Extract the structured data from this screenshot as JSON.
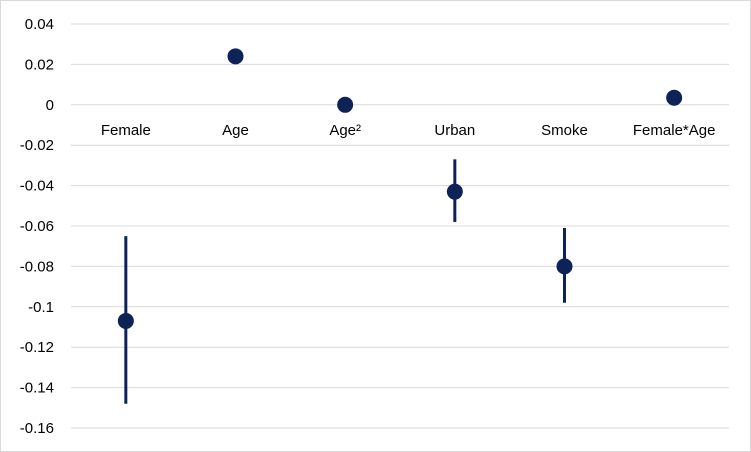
{
  "chart_data": {
    "type": "scatter",
    "subtype": "point-with-error-bars",
    "title": "",
    "xlabel": "",
    "ylabel": "",
    "ylim": [
      -0.16,
      0.04
    ],
    "ytick_step": 0.02,
    "yticks": [
      "0.04",
      "0.02",
      "0",
      "-0.02",
      "-0.04",
      "-0.06",
      "-0.08",
      "-0.1",
      "-0.12",
      "-0.14",
      "-0.16"
    ],
    "grid": true,
    "legend": "none",
    "marker_color": "#0d2256",
    "categories": [
      "Female",
      "Age",
      "Age²",
      "Urban",
      "Smoke",
      "Female*Age"
    ],
    "points": [
      {
        "label": "Female",
        "value": -0.107,
        "lower": -0.148,
        "upper": -0.065
      },
      {
        "label": "Age",
        "value": 0.024,
        "lower": 0.024,
        "upper": 0.024
      },
      {
        "label": "Age²",
        "value": 0.0,
        "lower": 0.0,
        "upper": 0.0
      },
      {
        "label": "Urban",
        "value": -0.043,
        "lower": -0.058,
        "upper": -0.027
      },
      {
        "label": "Smoke",
        "value": -0.08,
        "lower": -0.098,
        "upper": -0.061
      },
      {
        "label": "Female*Age",
        "value": 0.0035,
        "lower": 0.0035,
        "upper": 0.0035
      }
    ]
  }
}
